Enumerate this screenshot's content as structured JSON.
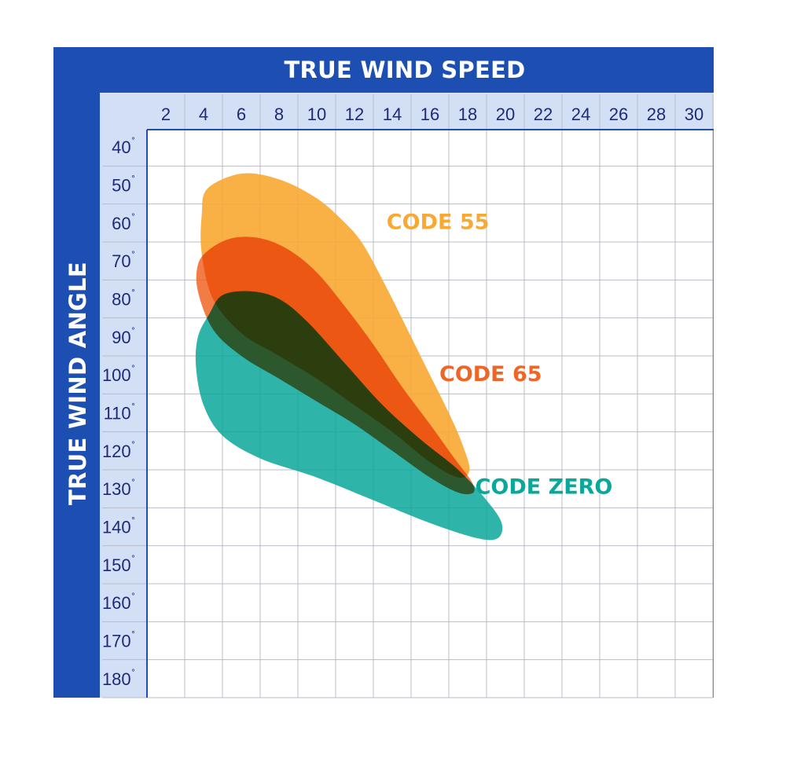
{
  "chart_data": {
    "type": "area",
    "xlabel": "TRUE WIND SPEED",
    "ylabel": "TRUE WIND ANGLE",
    "xlim": [
      1,
      31
    ],
    "ylim": [
      35,
      185
    ],
    "x_ticks": [
      "2",
      "4",
      "6",
      "8",
      "10",
      "12",
      "14",
      "16",
      "18",
      "20",
      "22",
      "24",
      "26",
      "28",
      "30"
    ],
    "y_ticks": [
      "40˚",
      "50˚",
      "60˚",
      "70˚",
      "80˚",
      "90˚",
      "100˚",
      "110˚",
      "120˚",
      "130˚",
      "140˚",
      "150˚",
      "160˚",
      "170˚",
      "180˚"
    ],
    "grid": true,
    "series": [
      {
        "name": "CODE 55",
        "color": "#f8a932",
        "outline": [
          [
            4.2,
            51
          ],
          [
            6,
            47
          ],
          [
            8,
            48.5
          ],
          [
            10,
            53.5
          ],
          [
            11.5,
            60
          ],
          [
            12.5,
            66
          ],
          [
            13.8,
            78
          ],
          [
            15,
            90
          ],
          [
            16,
            100
          ],
          [
            17,
            110
          ],
          [
            17.7,
            118
          ],
          [
            18.1,
            125
          ],
          [
            17.5,
            127
          ],
          [
            16,
            123
          ],
          [
            14,
            115
          ],
          [
            12,
            108
          ],
          [
            10,
            101
          ],
          [
            8,
            95
          ],
          [
            6,
            89
          ],
          [
            4.5,
            80
          ],
          [
            3.9,
            68
          ],
          [
            3.9,
            58
          ]
        ],
        "label_at": [
          13.7,
          59.5
        ]
      },
      {
        "name": "CODE 65",
        "color": "#f06525",
        "outline": [
          [
            4.3,
            67
          ],
          [
            5.5,
            64
          ],
          [
            7,
            64
          ],
          [
            8.5,
            67
          ],
          [
            10,
            73
          ],
          [
            11.5,
            82
          ],
          [
            13,
            92
          ],
          [
            14.5,
            103
          ],
          [
            16,
            113
          ],
          [
            17.3,
            122
          ],
          [
            18.2,
            128
          ],
          [
            18.3,
            131
          ],
          [
            17.5,
            131
          ],
          [
            16,
            127
          ],
          [
            14,
            120
          ],
          [
            12,
            113
          ],
          [
            10,
            107
          ],
          [
            8,
            101
          ],
          [
            6,
            95
          ],
          [
            4.5,
            88
          ],
          [
            3.7,
            78
          ],
          [
            3.7,
            71
          ]
        ],
        "label_at": [
          16.5,
          99.5
        ]
      },
      {
        "name": "CODE ZERO",
        "color": "#0aa79a",
        "outline": [
          [
            4.3,
            84
          ],
          [
            5,
            79
          ],
          [
            6.5,
            78
          ],
          [
            8,
            80
          ],
          [
            9.5,
            86
          ],
          [
            11.5,
            97
          ],
          [
            13.5,
            108
          ],
          [
            15.5,
            117
          ],
          [
            17.5,
            125
          ],
          [
            19,
            133
          ],
          [
            19.8,
            139
          ],
          [
            19.6,
            143
          ],
          [
            18.5,
            143
          ],
          [
            16,
            139
          ],
          [
            13,
            133
          ],
          [
            10,
            127
          ],
          [
            7,
            122
          ],
          [
            5,
            116
          ],
          [
            4,
            108
          ],
          [
            3.6,
            98
          ],
          [
            3.7,
            90
          ]
        ],
        "label_at": [
          18.4,
          129.2
        ]
      }
    ]
  }
}
